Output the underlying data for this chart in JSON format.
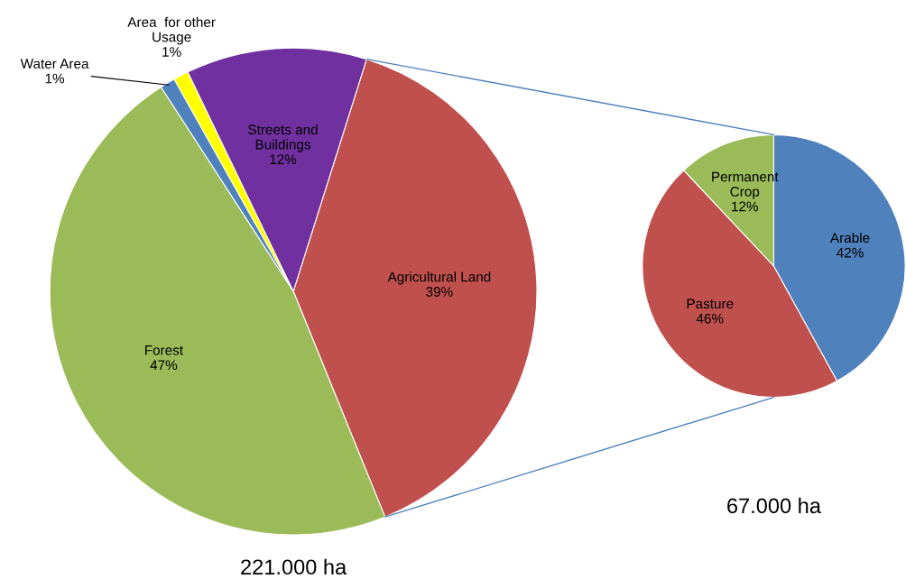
{
  "chart_data": [
    {
      "type": "pie",
      "xlabel": "221.000 ha",
      "categories": [
        "Agricultural Land",
        "Forest",
        "Water Area",
        "Area  for other\nUsage",
        "Streets and\nBuildings"
      ],
      "values": [
        39,
        47,
        1,
        1,
        12
      ],
      "value_labels": [
        "39%",
        "47%",
        "1%",
        "1%",
        "12%"
      ],
      "colors": [
        "#c0504d",
        "#9bbb59",
        "#4f81bd",
        "#ffff00",
        "#7030a0"
      ]
    },
    {
      "type": "pie",
      "xlabel": "67.000 ha",
      "categories": [
        "Arable",
        "Pasture",
        "Permanent\nCrop"
      ],
      "values": [
        42,
        46,
        12
      ],
      "value_labels": [
        "42%",
        "46%",
        "12%"
      ],
      "colors": [
        "#4f81bd",
        "#c0504d",
        "#9bbb59"
      ]
    }
  ]
}
